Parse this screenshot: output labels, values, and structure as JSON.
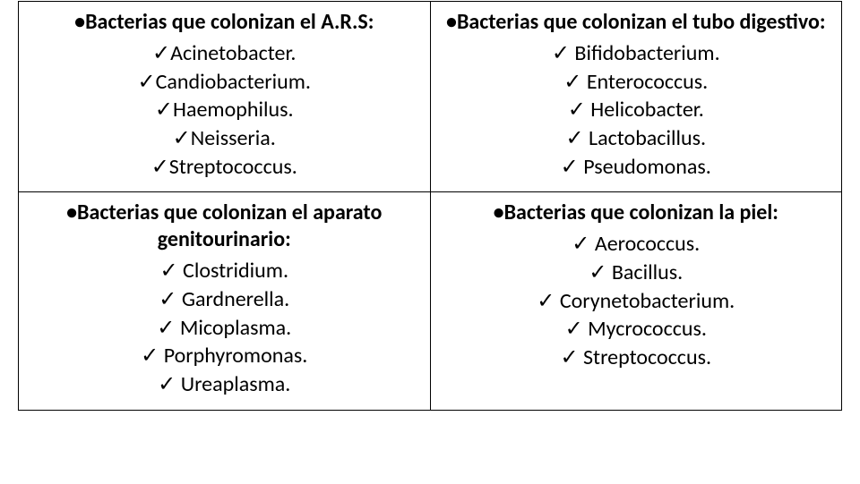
{
  "cells": [
    {
      "heading_prefix": "• ",
      "heading": "Bacterias que colonizan  el A.R.S:",
      "items": [
        "Acinetobacter.",
        "Candiobacterium.",
        "Haemophilus.",
        "Neisseria.",
        "Streptococcus."
      ],
      "check": "✓",
      "gap": ""
    },
    {
      "heading_prefix": "• ",
      "heading": "Bacterias que colonizan el tubo digestivo:",
      "items": [
        "Bifidobacterium.",
        "Enterococcus.",
        "Helicobacter.",
        "Lactobacillus.",
        "Pseudomonas."
      ],
      "check": "✓",
      "gap": " "
    },
    {
      "heading_prefix": "• ",
      "heading": "Bacterias que colonizan el aparato genitourinario:",
      "items": [
        "Clostridium.",
        "Gardnerella.",
        "Micoplasma.",
        "Porphyromonas.",
        "Ureaplasma."
      ],
      "check": "✓",
      "gap": " "
    },
    {
      "heading_prefix": "• ",
      "heading": "Bacterias que colonizan la piel:",
      "items": [
        "Aerococcus.",
        "Bacillus.",
        "Corynetobacterium.",
        "Mycrococcus.",
        "Streptococcus."
      ],
      "check": "✓",
      "gap": " "
    }
  ]
}
